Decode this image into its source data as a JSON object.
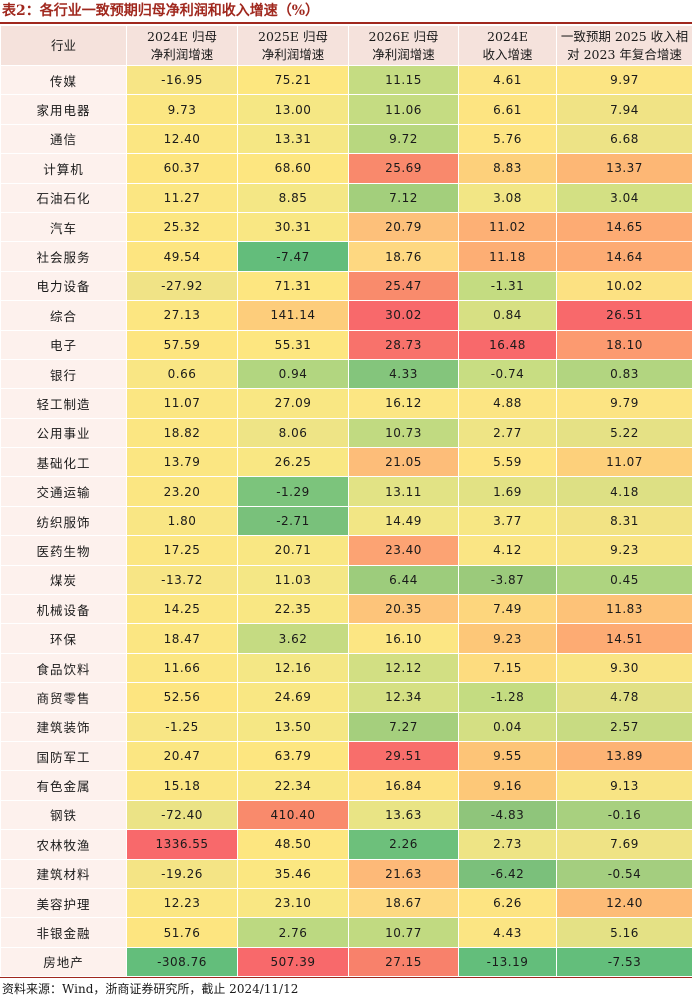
{
  "title": "表2：各行业一致预期归母净利润和收入增速（%）",
  "columns": [
    {
      "line1": "行业",
      "line2": ""
    },
    {
      "line1": "2024E 归母",
      "line2": "净利润增速"
    },
    {
      "line1": "2025E 归母",
      "line2": "净利润增速"
    },
    {
      "line1": "2026E 归母",
      "line2": "净利润增速"
    },
    {
      "line1": "2024E",
      "line2": "收入增速"
    },
    {
      "line1": "一致预期 2025 收入相",
      "line2": "对 2023 年复合增速"
    }
  ],
  "rows": [
    {
      "name": "传媒",
      "values": [
        "-16.95",
        "75.21",
        "11.15",
        "4.61",
        "9.97"
      ],
      "colors": [
        "#f7e585",
        "#fde77f",
        "#c5dc82",
        "#fce583",
        "#fce583"
      ]
    },
    {
      "name": "家用电器",
      "values": [
        "9.73",
        "13.00",
        "11.06",
        "6.61",
        "7.94"
      ],
      "colors": [
        "#fbe682",
        "#f5e784",
        "#c5dc82",
        "#fde481",
        "#f0e385"
      ]
    },
    {
      "name": "通信",
      "values": [
        "12.40",
        "13.31",
        "9.72",
        "5.76",
        "6.68"
      ],
      "colors": [
        "#fbe682",
        "#f5e784",
        "#b8d77f",
        "#fde482",
        "#ede386"
      ]
    },
    {
      "name": "计算机",
      "values": [
        "60.37",
        "68.60",
        "25.69",
        "8.83",
        "13.37"
      ],
      "colors": [
        "#fde57f",
        "#fde680",
        "#f9896c",
        "#fdd07b",
        "#fdb775"
      ]
    },
    {
      "name": "石油石化",
      "values": [
        "11.27",
        "8.85",
        "7.12",
        "3.08",
        "3.04"
      ],
      "colors": [
        "#fbe682",
        "#f4e785",
        "#a3cf7c",
        "#f2e685",
        "#d3e083"
      ]
    },
    {
      "name": "汽车",
      "values": [
        "25.32",
        "30.31",
        "20.79",
        "11.02",
        "14.65"
      ],
      "colors": [
        "#fce681",
        "#f9e783",
        "#fdc07a",
        "#fdb075",
        "#fdab73"
      ]
    },
    {
      "name": "社会服务",
      "values": [
        "49.54",
        "-7.47",
        "18.76",
        "11.18",
        "14.64"
      ],
      "colors": [
        "#fde580",
        "#63bd7b",
        "#fed881",
        "#fdae74",
        "#fdab73"
      ]
    },
    {
      "name": "电力设备",
      "values": [
        "-27.92",
        "71.31",
        "25.47",
        "-1.31",
        "10.02"
      ],
      "colors": [
        "#f0e386",
        "#fde680",
        "#f98b6c",
        "#c4dc81",
        "#fce182"
      ]
    },
    {
      "name": "综合",
      "values": [
        "27.13",
        "141.14",
        "30.02",
        "0.84",
        "26.51"
      ],
      "colors": [
        "#fce681",
        "#fdcd7b",
        "#f8696b",
        "#d7e083",
        "#f8696b"
      ]
    },
    {
      "name": "电子",
      "values": [
        "57.59",
        "55.31",
        "28.73",
        "16.48",
        "18.10"
      ],
      "colors": [
        "#fde57f",
        "#fde680",
        "#f8726b",
        "#f8696b",
        "#fc9a70"
      ]
    },
    {
      "name": "银行",
      "values": [
        "0.66",
        "0.94",
        "4.33",
        "-0.74",
        "0.83"
      ],
      "colors": [
        "#f9e684",
        "#b2d680",
        "#84c57c",
        "#c8dd82",
        "#b2d580"
      ]
    },
    {
      "name": "轻工制造",
      "values": [
        "11.07",
        "27.09",
        "16.12",
        "4.88",
        "9.79"
      ],
      "colors": [
        "#fbe682",
        "#f9e783",
        "#fce683",
        "#fce583",
        "#fce483"
      ]
    },
    {
      "name": "公用事业",
      "values": [
        "18.82",
        "8.06",
        "10.73",
        "2.77",
        "5.22"
      ],
      "colors": [
        "#fbe682",
        "#eee486",
        "#c1da81",
        "#eee485",
        "#e5e185"
      ]
    },
    {
      "name": "基础化工",
      "values": [
        "13.79",
        "26.25",
        "21.05",
        "5.59",
        "11.07"
      ],
      "colors": [
        "#fbe682",
        "#f9e783",
        "#fdbd79",
        "#fde482",
        "#fdd07b"
      ]
    },
    {
      "name": "交通运输",
      "values": [
        "23.20",
        "-1.29",
        "13.11",
        "1.69",
        "4.18"
      ],
      "colors": [
        "#fbe682",
        "#7cc47c",
        "#e2e385",
        "#e2e284",
        "#dde084"
      ]
    },
    {
      "name": "纺织服饰",
      "values": [
        "1.80",
        "-2.71",
        "14.49",
        "3.77",
        "8.31"
      ],
      "colors": [
        "#f9e684",
        "#79c17b",
        "#f2e685",
        "#f7e784",
        "#f2e384"
      ]
    },
    {
      "name": "医药生物",
      "values": [
        "17.25",
        "20.71",
        "23.40",
        "4.12",
        "9.23"
      ],
      "colors": [
        "#fbe682",
        "#f9e783",
        "#fca373",
        "#fae584",
        "#f8e484"
      ]
    },
    {
      "name": "煤炭",
      "values": [
        "-13.72",
        "11.03",
        "6.44",
        "-3.87",
        "0.45"
      ],
      "colors": [
        "#f7e585",
        "#f4e785",
        "#9dcc7c",
        "#9bca7b",
        "#aed480"
      ]
    },
    {
      "name": "机械设备",
      "values": [
        "14.25",
        "22.35",
        "20.35",
        "7.49",
        "11.83"
      ],
      "colors": [
        "#fbe682",
        "#f9e783",
        "#fdc47a",
        "#fdd67d",
        "#fdc278"
      ]
    },
    {
      "name": "环保",
      "values": [
        "18.47",
        "3.62",
        "16.10",
        "9.23",
        "14.51"
      ],
      "colors": [
        "#fbe682",
        "#c5db82",
        "#fce683",
        "#fdc778",
        "#fdab73"
      ]
    },
    {
      "name": "食品饮料",
      "values": [
        "11.66",
        "12.16",
        "12.12",
        "7.15",
        "9.30"
      ],
      "colors": [
        "#fbe682",
        "#f4e785",
        "#d2df83",
        "#fddc7f",
        "#f9e484"
      ]
    },
    {
      "name": "商贸零售",
      "values": [
        "52.56",
        "24.69",
        "12.34",
        "-1.28",
        "4.78"
      ],
      "colors": [
        "#fde580",
        "#f9e783",
        "#d5e083",
        "#c4dc81",
        "#e1e085"
      ]
    },
    {
      "name": "建筑装饰",
      "values": [
        "-1.25",
        "13.50",
        "7.27",
        "0.04",
        "2.57"
      ],
      "colors": [
        "#f8e685",
        "#f5e784",
        "#a5cf7d",
        "#d4df83",
        "#c8db82"
      ]
    },
    {
      "name": "国防军工",
      "values": [
        "20.47",
        "63.79",
        "29.51",
        "9.55",
        "13.89"
      ],
      "colors": [
        "#fbe682",
        "#fde680",
        "#f86e6b",
        "#fdc477",
        "#fdb374"
      ]
    },
    {
      "name": "有色金属",
      "values": [
        "15.18",
        "22.34",
        "16.84",
        "9.16",
        "9.13"
      ],
      "colors": [
        "#fbe682",
        "#f9e783",
        "#fde281",
        "#fdc878",
        "#f8e484"
      ]
    },
    {
      "name": "钢铁",
      "values": [
        "-72.40",
        "410.40",
        "13.63",
        "-4.83",
        "-0.16"
      ],
      "colors": [
        "#ebe386",
        "#f98a6c",
        "#e9e485",
        "#8fc57b",
        "#a8d07f"
      ]
    },
    {
      "name": "农林牧渔",
      "values": [
        "1336.55",
        "48.50",
        "2.26",
        "2.73",
        "7.69"
      ],
      "colors": [
        "#f8696b",
        "#fde680",
        "#6dc07b",
        "#eee485",
        "#efe385"
      ]
    },
    {
      "name": "建筑材料",
      "values": [
        "-19.26",
        "35.46",
        "21.63",
        "-6.42",
        "-0.54"
      ],
      "colors": [
        "#f4e485",
        "#fbe781",
        "#fdb978",
        "#7bc07b",
        "#a4ce7f"
      ]
    },
    {
      "name": "美容护理",
      "values": [
        "12.23",
        "23.10",
        "18.67",
        "6.26",
        "12.40"
      ],
      "colors": [
        "#fbe682",
        "#f9e783",
        "#fdd981",
        "#fde482",
        "#fdbc77"
      ]
    },
    {
      "name": "非银金融",
      "values": [
        "51.76",
        "2.76",
        "10.77",
        "4.43",
        "5.16"
      ],
      "colors": [
        "#fde580",
        "#bcd981",
        "#c1da81",
        "#fbe583",
        "#e4e185"
      ]
    },
    {
      "name": "房地产",
      "values": [
        "-308.76",
        "507.39",
        "27.15",
        "-13.19",
        "-7.53"
      ],
      "colors": [
        "#63be7b",
        "#f8696b",
        "#f8816b",
        "#63be7b",
        "#63be7b"
      ]
    }
  ],
  "source": "资料来源：Wind，浙商证券研究所，截止 2024/11/12"
}
